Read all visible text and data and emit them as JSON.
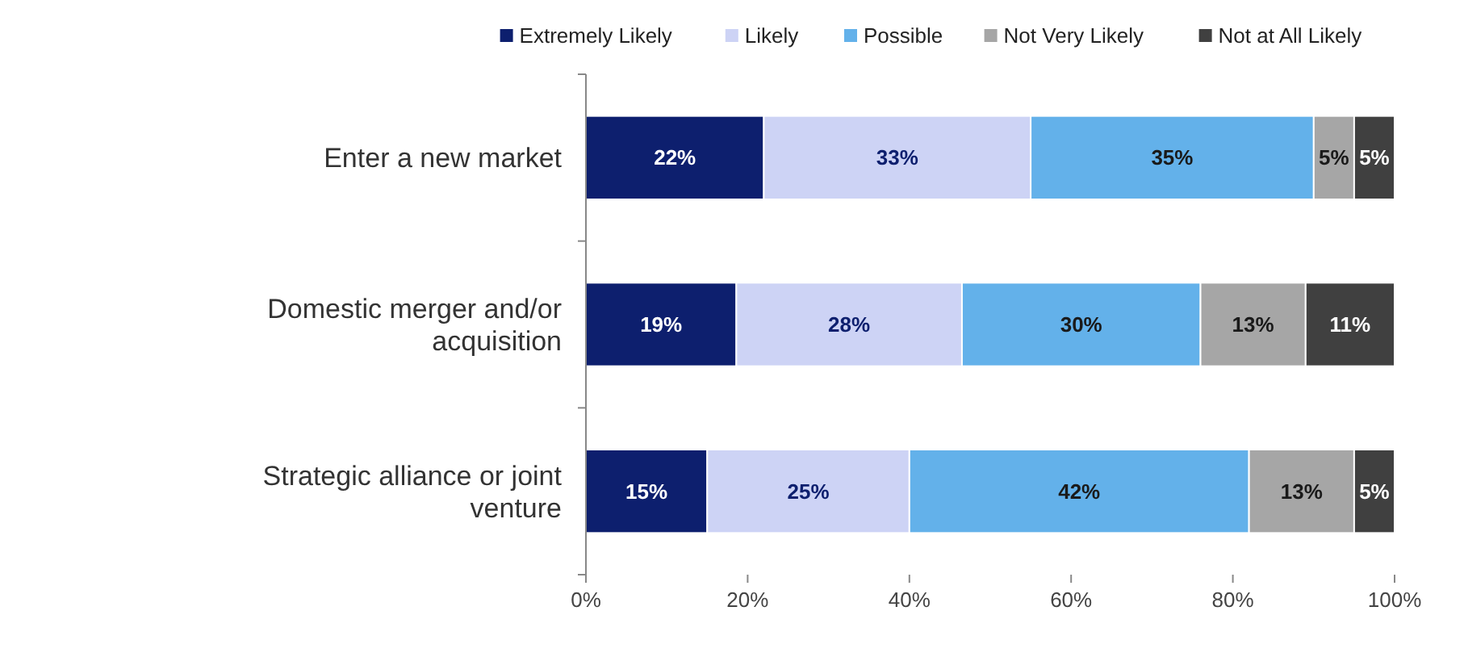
{
  "chart_data": {
    "type": "bar",
    "orientation": "horizontal",
    "stacked": true,
    "categories": [
      "Enter a new market",
      "Domestic merger and/or acquisition",
      "Strategic alliance or joint venture"
    ],
    "series": [
      {
        "name": "Extremely Likely",
        "color": "#0d1f6e",
        "values": [
          22,
          18.6,
          15
        ],
        "value_labels": [
          "22%",
          "19%",
          "15%"
        ]
      },
      {
        "name": "Likely",
        "color": "#cdd3f5",
        "values": [
          33,
          27.9,
          25
        ],
        "value_labels": [
          "33%",
          "28%",
          "25%"
        ]
      },
      {
        "name": "Possible",
        "color": "#63b1ea",
        "values": [
          35,
          29.5,
          42
        ],
        "value_labels": [
          "35%",
          "30%",
          "42%"
        ]
      },
      {
        "name": "Not Very Likely",
        "color": "#a6a6a6",
        "values": [
          5,
          13,
          13
        ],
        "value_labels": [
          "5%",
          "13%",
          "13%"
        ]
      },
      {
        "name": "Not at All Likely",
        "color": "#404040",
        "values": [
          5,
          11,
          5
        ],
        "value_labels": [
          "5%",
          "11%",
          "5%"
        ]
      }
    ],
    "xlim": [
      0,
      100
    ],
    "xticks": [
      {
        "value": 0,
        "label": "0%"
      },
      {
        "value": 20,
        "label": "20%"
      },
      {
        "value": 40,
        "label": "40%"
      },
      {
        "value": 60,
        "label": "60%"
      },
      {
        "value": 80,
        "label": "80%"
      },
      {
        "value": 100,
        "label": "100%"
      }
    ],
    "legend": "top",
    "grid": false
  }
}
